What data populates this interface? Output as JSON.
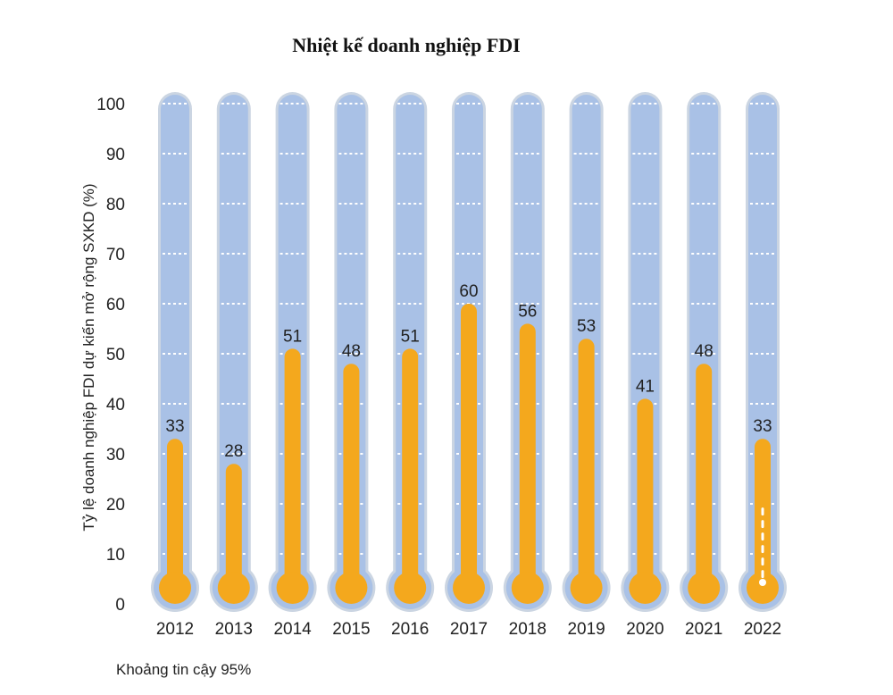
{
  "chart_data": {
    "type": "bar",
    "title": "Nhiệt kế doanh nghiệp FDI",
    "ylabel": "Tỷ lệ doanh nghiệp FDI dự kiến mở rộng SXKD (%)",
    "xlabel": "",
    "categories": [
      "2012",
      "2013",
      "2014",
      "2015",
      "2016",
      "2017",
      "2018",
      "2019",
      "2020",
      "2021",
      "2022"
    ],
    "values": [
      33,
      28,
      51,
      48,
      51,
      60,
      56,
      53,
      41,
      48,
      33
    ],
    "data_labels": [
      "33",
      "28",
      "51",
      "48",
      "51",
      "60",
      "56",
      "53",
      "41",
      "48",
      "33"
    ],
    "yticks": [
      "0",
      "10",
      "20",
      "30",
      "40",
      "50",
      "60",
      "70",
      "80",
      "90",
      "100"
    ],
    "ylim": [
      0,
      100
    ],
    "grid": true,
    "footnote": "Khoảng tin cậy 95%",
    "colors": {
      "tube": "#a9c1e6",
      "tube_border": "#cbd5e2",
      "mercury": "#f4a81d",
      "grid": "#ffffff",
      "text": "#222222"
    }
  }
}
